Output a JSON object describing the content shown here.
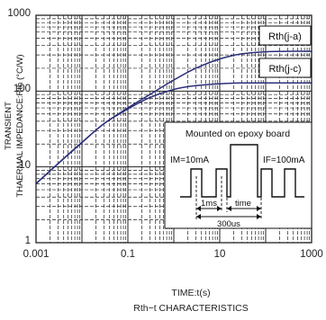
{
  "chart_data": {
    "type": "line",
    "x_scale": "log",
    "y_scale": "log",
    "xlim": [
      0.001,
      1000
    ],
    "ylim": [
      1,
      1000
    ],
    "grid": true,
    "x_ticks": [
      "0.001",
      "0.1",
      "10",
      "1000"
    ],
    "y_ticks": [
      "1",
      "10",
      "100",
      "1000"
    ],
    "xlabel": "TIME:t(s)",
    "caption": "Rth−t CHARACTERISTICS",
    "ylabel_lines": [
      "TRANSIENT",
      "THAERMAL IMPEDANCE:Rth (°C/W)"
    ],
    "series": [
      {
        "name": "Rth(j-a)",
        "x": [
          0.001,
          0.003,
          0.01,
          0.03,
          0.1,
          0.3,
          1,
          3,
          10,
          30,
          100,
          300,
          1000
        ],
        "y": [
          6,
          11,
          21,
          37,
          60,
          90,
          140,
          200,
          265,
          310,
          330,
          335,
          335
        ]
      },
      {
        "name": "Rth(j-c)",
        "x": [
          0.001,
          0.003,
          0.01,
          0.03,
          0.1,
          0.3,
          1,
          3,
          10,
          30,
          100,
          300,
          1000
        ],
        "y": [
          6,
          11,
          21,
          37,
          58,
          82,
          105,
          118,
          125,
          128,
          128,
          128,
          128
        ]
      }
    ],
    "inset": {
      "title": "Mounted on epoxy board",
      "im_label": "IM=10mA",
      "if_label": "IF=100mA",
      "pulse_label": "1ms",
      "time_label": "time",
      "period_label": "300us"
    }
  }
}
